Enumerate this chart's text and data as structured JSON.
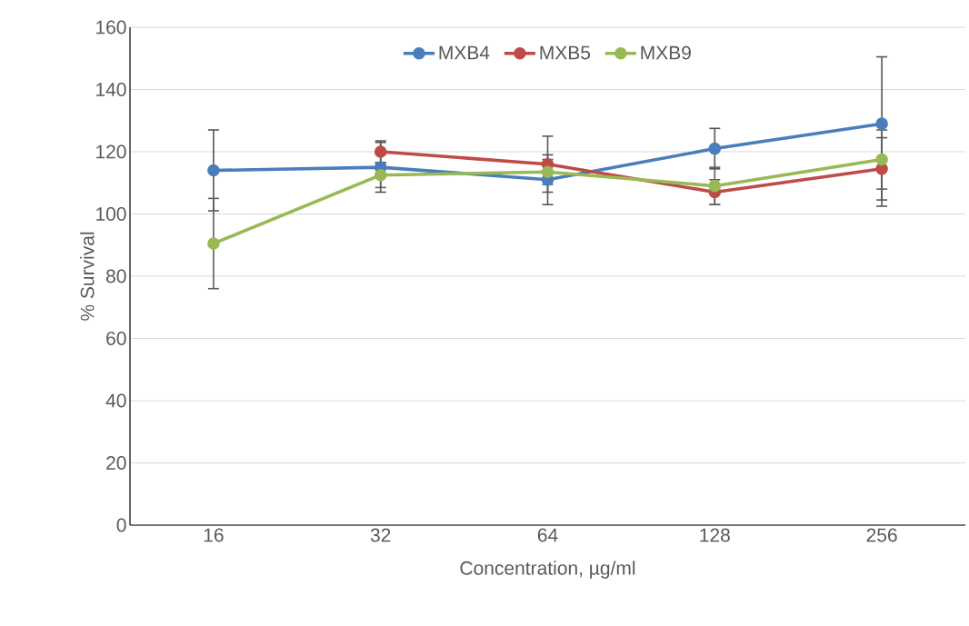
{
  "chart_data": {
    "type": "line",
    "xlabel": "Concentration, µg/ml",
    "ylabel": "% Survival",
    "categories": [
      "16",
      "32",
      "64",
      "128",
      "256"
    ],
    "series": [
      {
        "name": "MXB4",
        "color": "#4a7ebb",
        "values": [
          114,
          115,
          111,
          121,
          129
        ],
        "errors": [
          13,
          8,
          8,
          6.5,
          [
            102.5,
            150.5
          ]
        ]
      },
      {
        "name": "MXB5",
        "color": "#be4b48",
        "values": [
          null,
          120,
          116,
          107,
          114.5
        ],
        "errors": [
          null,
          3.5,
          9,
          4,
          10
        ]
      },
      {
        "name": "MXB9",
        "color": "#98b954",
        "values": [
          90.5,
          112.5,
          113.5,
          109,
          117.5
        ],
        "errors": [
          14.5,
          4,
          4,
          6,
          9.5
        ]
      }
    ],
    "ylim": [
      0,
      160
    ],
    "yticks": [
      0,
      20,
      40,
      60,
      80,
      100,
      120,
      140,
      160
    ],
    "grid": "y",
    "legend": "top",
    "marker": "circle",
    "line_style": "solid"
  }
}
